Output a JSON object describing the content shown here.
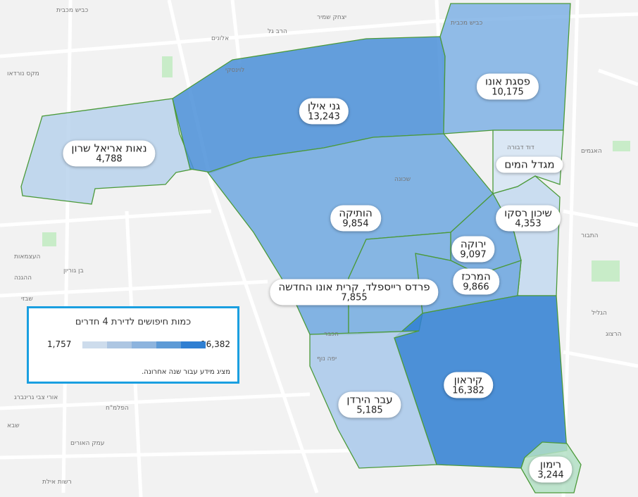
{
  "legend": {
    "title": "כמות חיפושים לדירת 4 חדרים",
    "min": "1,757",
    "max": "16,382",
    "note": "מציג מידע עבור שנה אחרונה.",
    "colors": [
      "#cddcec",
      "#adc6e2",
      "#8db4de",
      "#5c9ad6",
      "#2f7fd2"
    ]
  },
  "neighborhoods": [
    {
      "name": "נאות אריאל שרון",
      "value": "4,788",
      "color": "#b9d2ec"
    },
    {
      "name": "גני אילן",
      "value": "13,243",
      "color": "#4a8fd8"
    },
    {
      "name": "פסגת אונו",
      "value": "10,175",
      "color": "#7fb1e5"
    },
    {
      "name": "מגדל המים",
      "value": "",
      "color": "#d6e5f4"
    },
    {
      "name": "הותיקה",
      "value": "9,854",
      "color": "#6ea8e0"
    },
    {
      "name": "שיכון רסקו",
      "value": "4,353",
      "color": "#c3d9f0"
    },
    {
      "name": "ירוקה",
      "value": "9,097",
      "color": "#6ba6df"
    },
    {
      "name": "המרכז",
      "value": "9,866",
      "color": "#6aa5df"
    },
    {
      "name": "פרדס רייספלד, קרית אונו החדשה",
      "value": "7,855",
      "color": "#73abe1"
    },
    {
      "name": "קיראון",
      "value": "16,382",
      "color": "#2f7fd2"
    },
    {
      "name": "עבר הירדן",
      "value": "5,185",
      "color": "#a9c9eb"
    },
    {
      "name": "רימון",
      "value": "3,244",
      "color": "#b4e0c6"
    }
  ],
  "streets": [
    "כביש מכבית",
    "כביש מכבית",
    "הרב גל",
    "יצחק שמיר",
    "אלונים",
    "מקס נורדאו",
    "העצמאות",
    "ההגנה",
    "בן גוריון",
    "שבזי",
    "הפלמ\"ח",
    "אורי צבי גרינברג",
    "עמק האורים",
    "רשות אילת",
    "שבא",
    "הגליל",
    "הרצוג",
    "התבור",
    "האגמים",
    "דוד דבורה",
    "שכונה",
    "יפה נוף",
    "הכבר",
    "לוינסקי"
  ]
}
